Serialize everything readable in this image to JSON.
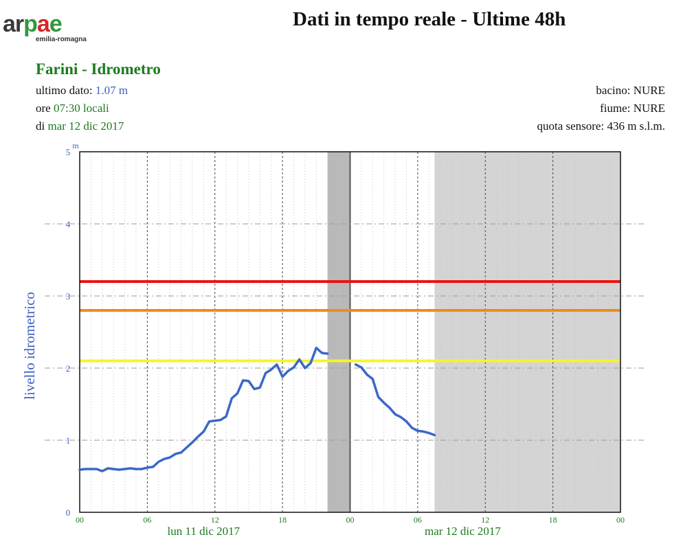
{
  "logo": {
    "text_parts": [
      "ar",
      "p",
      "a",
      "e"
    ],
    "subtext": "emilia-romagna"
  },
  "page_title": "Dati in tempo reale - Ultime 48h",
  "station": {
    "title": "Farini - Idrometro",
    "last_value_label": "ultimo dato:",
    "last_value": "1.07 m",
    "time_prefix": "ore",
    "time_value": "07:30 locali",
    "date_prefix": "di",
    "date_value": "mar 12 dic 2017",
    "basin_label": "bacino:",
    "basin_value": "NURE",
    "river_label": "fiume:",
    "river_value": "NURE",
    "quota_label": "quota sensore:",
    "quota_value": "436 m s.l.m."
  },
  "colors": {
    "series": "#3b67c8",
    "threshold_red": "#ee1111",
    "threshold_orange": "#f28a1a",
    "threshold_yellow": "#f5f52a",
    "future_shade": "#d4d4d4",
    "gap_band": "#b9b9b9",
    "axis_text": "#1d7a1d",
    "ylabel_color": "#3b5fc0"
  },
  "chart_data": {
    "type": "line",
    "ylabel": "livello idrometrico",
    "yunit": "m",
    "ylim": [
      0,
      5
    ],
    "yticks": [
      "0",
      "1",
      "2",
      "3",
      "4",
      "5"
    ],
    "xlim_hours": [
      0,
      48
    ],
    "xtick_labels": [
      "00",
      "06",
      "12",
      "18",
      "00",
      "06",
      "12",
      "18",
      "00"
    ],
    "day_labels": [
      "lun 11 dic 2017",
      "mar 12 dic 2017"
    ],
    "thresholds": [
      {
        "value": 3.2,
        "color": "red"
      },
      {
        "value": 2.8,
        "color": "orange"
      },
      {
        "value": 2.1,
        "color": "yellow"
      }
    ],
    "gap_hours": [
      22.0,
      24.0
    ],
    "future_from_hour": 31.5,
    "series": [
      {
        "x": [
          0,
          0.5,
          1,
          1.5,
          2,
          2.5,
          3,
          3.5,
          4,
          4.5,
          5,
          5.5,
          6,
          6.5,
          7,
          7.5,
          8,
          8.5,
          9,
          9.5,
          10,
          10.5,
          11,
          11.5,
          12,
          12.5,
          13,
          13.5,
          14,
          14.5,
          15,
          15.5,
          16,
          16.5,
          17,
          17.5,
          18,
          18.5,
          19,
          19.5,
          20,
          20.5,
          21,
          21.5,
          22
        ],
        "y": [
          0.59,
          0.6,
          0.6,
          0.6,
          0.57,
          0.61,
          0.6,
          0.59,
          0.6,
          0.61,
          0.6,
          0.6,
          0.62,
          0.63,
          0.7,
          0.74,
          0.76,
          0.81,
          0.83,
          0.9,
          0.97,
          1.05,
          1.12,
          1.26,
          1.27,
          1.28,
          1.33,
          1.58,
          1.65,
          1.83,
          1.82,
          1.71,
          1.73,
          1.93,
          1.98,
          2.05,
          1.88,
          1.96,
          2.01,
          2.12,
          2.0,
          2.07,
          2.28,
          2.21,
          2.2
        ],
        "y_end_adjust": [
          2.2
        ]
      },
      {
        "x": [
          24.5,
          25,
          25.5,
          26,
          26.5,
          27,
          27.5,
          28,
          28.5,
          29,
          29.5,
          30,
          30.5,
          31,
          31.5
        ],
        "y": [
          2.05,
          2.01,
          1.91,
          1.85,
          1.6,
          1.52,
          1.45,
          1.36,
          1.32,
          1.26,
          1.17,
          1.13,
          1.12,
          1.1,
          1.07
        ]
      }
    ]
  }
}
